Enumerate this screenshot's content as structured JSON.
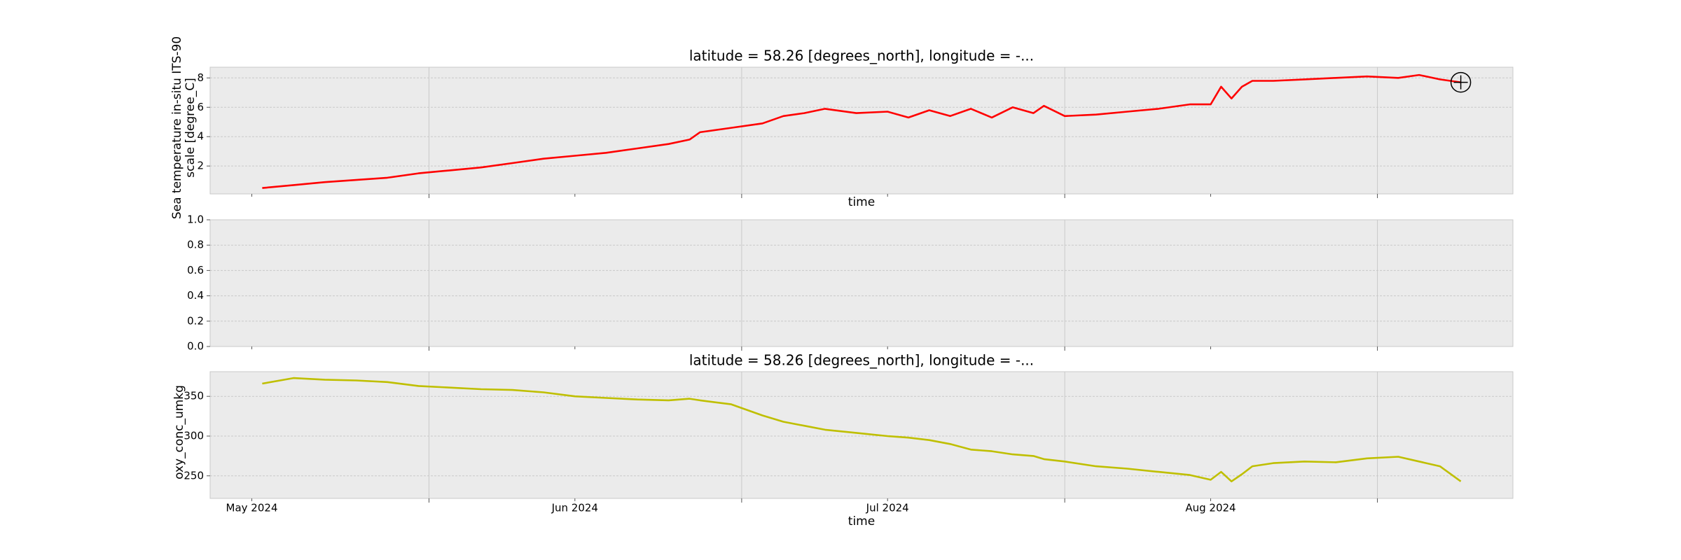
{
  "chart_data": [
    {
      "type": "line",
      "title": "latitude = 58.26 [degrees_north], longitude = -...",
      "xlabel": "time",
      "ylabel": [
        "Sea temperature in-situ ITS-90",
        "scale [degree_C]"
      ],
      "x": [
        "2024-05-02",
        "2024-05-05",
        "2024-05-08",
        "2024-05-11",
        "2024-05-14",
        "2024-05-17",
        "2024-05-20",
        "2024-05-23",
        "2024-05-26",
        "2024-05-29",
        "2024-06-01",
        "2024-06-04",
        "2024-06-07",
        "2024-06-10",
        "2024-06-12",
        "2024-06-13",
        "2024-06-16",
        "2024-06-19",
        "2024-06-21",
        "2024-06-23",
        "2024-06-25",
        "2024-06-28",
        "2024-07-01",
        "2024-07-03",
        "2024-07-05",
        "2024-07-07",
        "2024-07-09",
        "2024-07-11",
        "2024-07-13",
        "2024-07-15",
        "2024-07-16",
        "2024-07-18",
        "2024-07-21",
        "2024-07-24",
        "2024-07-27",
        "2024-07-30",
        "2024-08-01",
        "2024-08-02",
        "2024-08-03",
        "2024-08-04",
        "2024-08-05",
        "2024-08-07",
        "2024-08-10",
        "2024-08-13",
        "2024-08-16",
        "2024-08-19",
        "2024-08-21",
        "2024-08-23",
        "2024-08-25"
      ],
      "series": [
        {
          "color": "#ff0000",
          "values": [
            0.5,
            0.7,
            0.9,
            1.05,
            1.2,
            1.5,
            1.7,
            1.9,
            2.2,
            2.5,
            2.7,
            2.9,
            3.2,
            3.5,
            3.8,
            4.3,
            4.6,
            4.9,
            5.4,
            5.6,
            5.9,
            5.6,
            5.7,
            5.3,
            5.8,
            5.4,
            5.9,
            5.3,
            6.0,
            5.6,
            6.1,
            5.4,
            5.5,
            5.7,
            5.9,
            6.2,
            6.2,
            7.4,
            6.6,
            7.4,
            7.8,
            7.8,
            7.9,
            8.0,
            8.1,
            8.0,
            8.2,
            7.9,
            7.7
          ]
        }
      ],
      "xlim": [
        "2024-04-27",
        "2024-08-30"
      ],
      "xticks": [
        "2024-05-01",
        "2024-06-01",
        "2024-07-01",
        "2024-08-01"
      ],
      "xminorticks": [
        "2024-05-18",
        "2024-06-17",
        "2024-07-18",
        "2024-08-17"
      ],
      "ylim": [
        0.1,
        8.73
      ],
      "yticks": [
        2,
        4,
        6,
        8
      ],
      "grid": true
    },
    {
      "type": "line",
      "xlim": [
        "2024-04-27",
        "2024-08-30"
      ],
      "xticks": [
        "2024-05-01",
        "2024-06-01",
        "2024-07-01",
        "2024-08-01"
      ],
      "xminorticks": [
        "2024-05-18",
        "2024-06-17",
        "2024-07-18",
        "2024-08-17"
      ],
      "ylim": [
        0,
        1
      ],
      "yticks": [
        {
          "value": 0,
          "label": "0.0"
        },
        {
          "value": 0.2,
          "label": "0.2"
        },
        {
          "value": 0.4,
          "label": "0.4"
        },
        {
          "value": 0.6,
          "label": "0.6"
        },
        {
          "value": 0.8,
          "label": "0.8"
        },
        {
          "value": 1,
          "label": "1.0"
        }
      ],
      "grid": true
    },
    {
      "type": "line",
      "title": "latitude = 58.26 [degrees_north], longitude = -...",
      "xlabel": "time",
      "ylabel": [
        "oxy_conc_umkg"
      ],
      "x": [
        "2024-05-02",
        "2024-05-05",
        "2024-05-08",
        "2024-05-11",
        "2024-05-14",
        "2024-05-17",
        "2024-05-20",
        "2024-05-23",
        "2024-05-26",
        "2024-05-29",
        "2024-06-01",
        "2024-06-04",
        "2024-06-07",
        "2024-06-10",
        "2024-06-12",
        "2024-06-13",
        "2024-06-16",
        "2024-06-19",
        "2024-06-21",
        "2024-06-23",
        "2024-06-25",
        "2024-06-28",
        "2024-07-01",
        "2024-07-03",
        "2024-07-05",
        "2024-07-07",
        "2024-07-09",
        "2024-07-11",
        "2024-07-13",
        "2024-07-15",
        "2024-07-16",
        "2024-07-18",
        "2024-07-21",
        "2024-07-24",
        "2024-07-27",
        "2024-07-30",
        "2024-08-01",
        "2024-08-02",
        "2024-08-03",
        "2024-08-04",
        "2024-08-05",
        "2024-08-07",
        "2024-08-10",
        "2024-08-13",
        "2024-08-16",
        "2024-08-19",
        "2024-08-21",
        "2024-08-23",
        "2024-08-25"
      ],
      "series": [
        {
          "color": "#bfbf00",
          "values": [
            366,
            373,
            371,
            370,
            368,
            363,
            361,
            359,
            358,
            355,
            350,
            348,
            346,
            345,
            347,
            345,
            340,
            326,
            318,
            313,
            308,
            304,
            300,
            298,
            295,
            290,
            283,
            281,
            277,
            275,
            271,
            268,
            262,
            259,
            255,
            251,
            245,
            255,
            243,
            252,
            262,
            266,
            268,
            267,
            272,
            274,
            268,
            262,
            243
          ]
        }
      ],
      "xlim": [
        "2024-04-27",
        "2024-08-30"
      ],
      "xticks": [
        {
          "value": "2024-05-01",
          "label": "May 2024"
        },
        {
          "value": "2024-06-01",
          "label": "Jun 2024"
        },
        {
          "value": "2024-07-01",
          "label": "Jul 2024"
        },
        {
          "value": "2024-08-01",
          "label": "Aug 2024"
        }
      ],
      "xminorticks": [
        "2024-05-18",
        "2024-06-17",
        "2024-07-18",
        "2024-08-17"
      ],
      "ylim": [
        221.6,
        381
      ],
      "yticks": [
        250,
        300,
        350
      ],
      "grid": true
    }
  ]
}
